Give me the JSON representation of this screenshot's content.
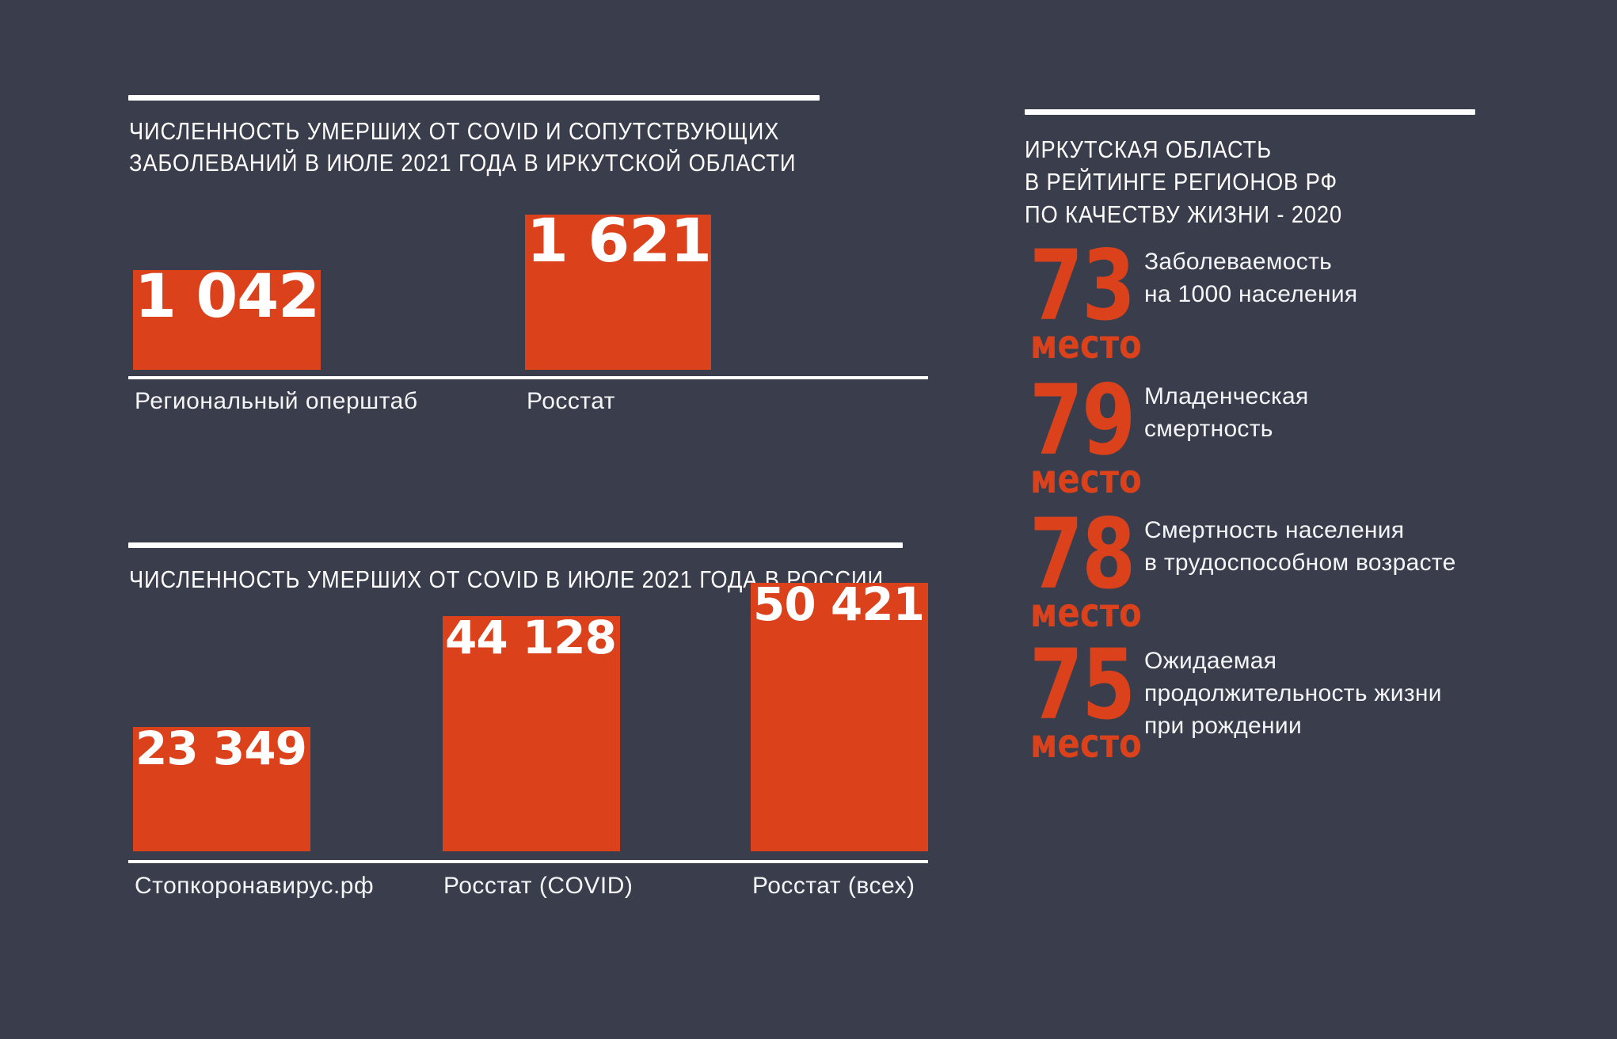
{
  "page": {
    "background_color": "#3a3d4b",
    "accent_color": "#db421c",
    "text_color": "#ffffff"
  },
  "charts": [
    {
      "title_lines": [
        "ЧИСЛЕННОСТЬ УМЕРШИХ ОТ COVID И СОПУТСТВУЮЩИХ",
        "ЗАБОЛЕВАНИЙ В ИЮЛЕ 2021 ГОДА В ИРКУТСКОЙ ОБЛАСТИ"
      ],
      "bars": [
        {
          "label": "Региональный оперштаб",
          "value_text": "1 042"
        },
        {
          "label": "Росстат",
          "value_text": "1 621"
        }
      ]
    },
    {
      "title_lines": [
        "ЧИСЛЕННОСТЬ УМЕРШИХ ОТ COVID В ИЮЛЕ 2021 ГОДА В РОССИИ"
      ],
      "bars": [
        {
          "label": "Стопкоронавирус.рф",
          "value_text": "23 349"
        },
        {
          "label": "Росстат (COVID)",
          "value_text": "44 128"
        },
        {
          "label": "Росстат (всех)",
          "value_text": "50 421"
        }
      ]
    }
  ],
  "ranking": {
    "title_lines": [
      "ИРКУТСКАЯ ОБЛАСТЬ",
      "В РЕЙТИНГЕ РЕГИОНОВ РФ",
      "ПО КАЧЕСТВУ ЖИЗНИ - 2020"
    ],
    "place_word": "место",
    "items": [
      {
        "rank": "73",
        "desc_lines": [
          "Заболеваемость",
          "на 1000 населения",
          ""
        ]
      },
      {
        "rank": "79",
        "desc_lines": [
          "Младенческая",
          "смертность",
          ""
        ]
      },
      {
        "rank": "78",
        "desc_lines": [
          "Смертность населения",
          "в трудоспособном возрасте",
          ""
        ]
      },
      {
        "rank": "75",
        "desc_lines": [
          "Ожидаемая",
          "продолжительность жизни",
          "при рождении"
        ]
      }
    ]
  },
  "chart_data": [
    {
      "type": "bar",
      "title": "ЧИСЛЕННОСТЬ УМЕРШИХ ОТ COVID И СОПУТСТВУЮЩИХ ЗАБОЛЕВАНИЙ В ИЮЛЕ 2021 ГОДА В ИРКУТСКОЙ ОБЛАСТИ",
      "categories": [
        "Региональный оперштаб",
        "Росстат"
      ],
      "values": [
        1042,
        1621
      ],
      "value_labels": [
        "1 042",
        "1 621"
      ],
      "bar_color": "#db421c",
      "xlabel": "",
      "ylabel": "",
      "grid": false,
      "legend": false
    },
    {
      "type": "bar",
      "title": "ЧИСЛЕННОСТЬ УМЕРШИХ ОТ COVID В ИЮЛЕ 2021 ГОДА В РОССИИ",
      "categories": [
        "Стопкоронавирус.рф",
        "Росстат (COVID)",
        "Росстат (всех)"
      ],
      "values": [
        23349,
        44128,
        50421
      ],
      "value_labels": [
        "23 349",
        "44 128",
        "50 421"
      ],
      "bar_color": "#db421c",
      "xlabel": "",
      "ylabel": "",
      "grid": false,
      "legend": false
    }
  ]
}
